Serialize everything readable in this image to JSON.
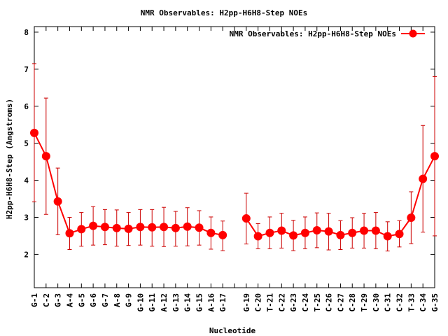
{
  "chart_data": {
    "type": "line",
    "title": "NMR Observables: H2pp-H6H8-Step NOEs",
    "xlabel": "Nucleotide",
    "ylabel": "H2pp-H6H8-Step (Angstroms)",
    "ylim": [
      1.1,
      8.15
    ],
    "yticks": [
      2,
      3,
      4,
      5,
      6,
      7,
      8
    ],
    "grid": false,
    "legend_position": "top-right",
    "colors": {
      "series": "#ff0000",
      "errorbar": "#cc0000",
      "frame": "#000000"
    },
    "categories": [
      "G-1",
      "C-2",
      "G-3",
      "A-4",
      "G-5",
      "G-6",
      "G-7",
      "A-8",
      "G-9",
      "G-10",
      "G-11",
      "A-12",
      "G-13",
      "G-14",
      "G-15",
      "A-16",
      "G-17",
      "",
      "G-19",
      "C-20",
      "T-21",
      "C-22",
      "G-23",
      "C-24",
      "T-25",
      "C-26",
      "C-27",
      "C-28",
      "T-29",
      "C-30",
      "C-31",
      "C-32",
      "T-33",
      "C-34",
      "G-35"
    ],
    "series": [
      {
        "name": "NMR Observables: H2pp-H6H8-Step NOEs",
        "values": [
          5.28,
          4.65,
          3.43,
          2.57,
          2.68,
          2.77,
          2.74,
          2.71,
          2.69,
          2.74,
          2.73,
          2.74,
          2.71,
          2.75,
          2.72,
          2.58,
          2.52,
          null,
          2.97,
          2.49,
          2.58,
          2.64,
          2.51,
          2.58,
          2.65,
          2.62,
          2.52,
          2.58,
          2.64,
          2.64,
          2.49,
          2.55,
          2.99,
          4.04,
          4.65
        ],
        "err_low": [
          3.42,
          3.08,
          2.53,
          2.13,
          2.22,
          2.25,
          2.26,
          2.22,
          2.24,
          2.25,
          2.22,
          2.21,
          2.22,
          2.23,
          2.25,
          2.14,
          2.1,
          null,
          2.28,
          2.15,
          2.15,
          2.17,
          2.1,
          2.15,
          2.18,
          2.12,
          2.13,
          2.17,
          2.17,
          2.15,
          2.09,
          2.2,
          2.29,
          2.6,
          2.5
        ],
        "err_high": [
          7.15,
          6.22,
          4.33,
          3.0,
          3.13,
          3.29,
          3.21,
          3.2,
          3.13,
          3.21,
          3.21,
          3.27,
          3.16,
          3.26,
          3.18,
          3.01,
          2.9,
          null,
          3.65,
          2.83,
          3.01,
          3.11,
          2.92,
          3.01,
          3.12,
          3.11,
          2.91,
          2.99,
          3.11,
          3.13,
          2.88,
          2.91,
          3.69,
          5.48,
          6.8
        ]
      }
    ]
  }
}
